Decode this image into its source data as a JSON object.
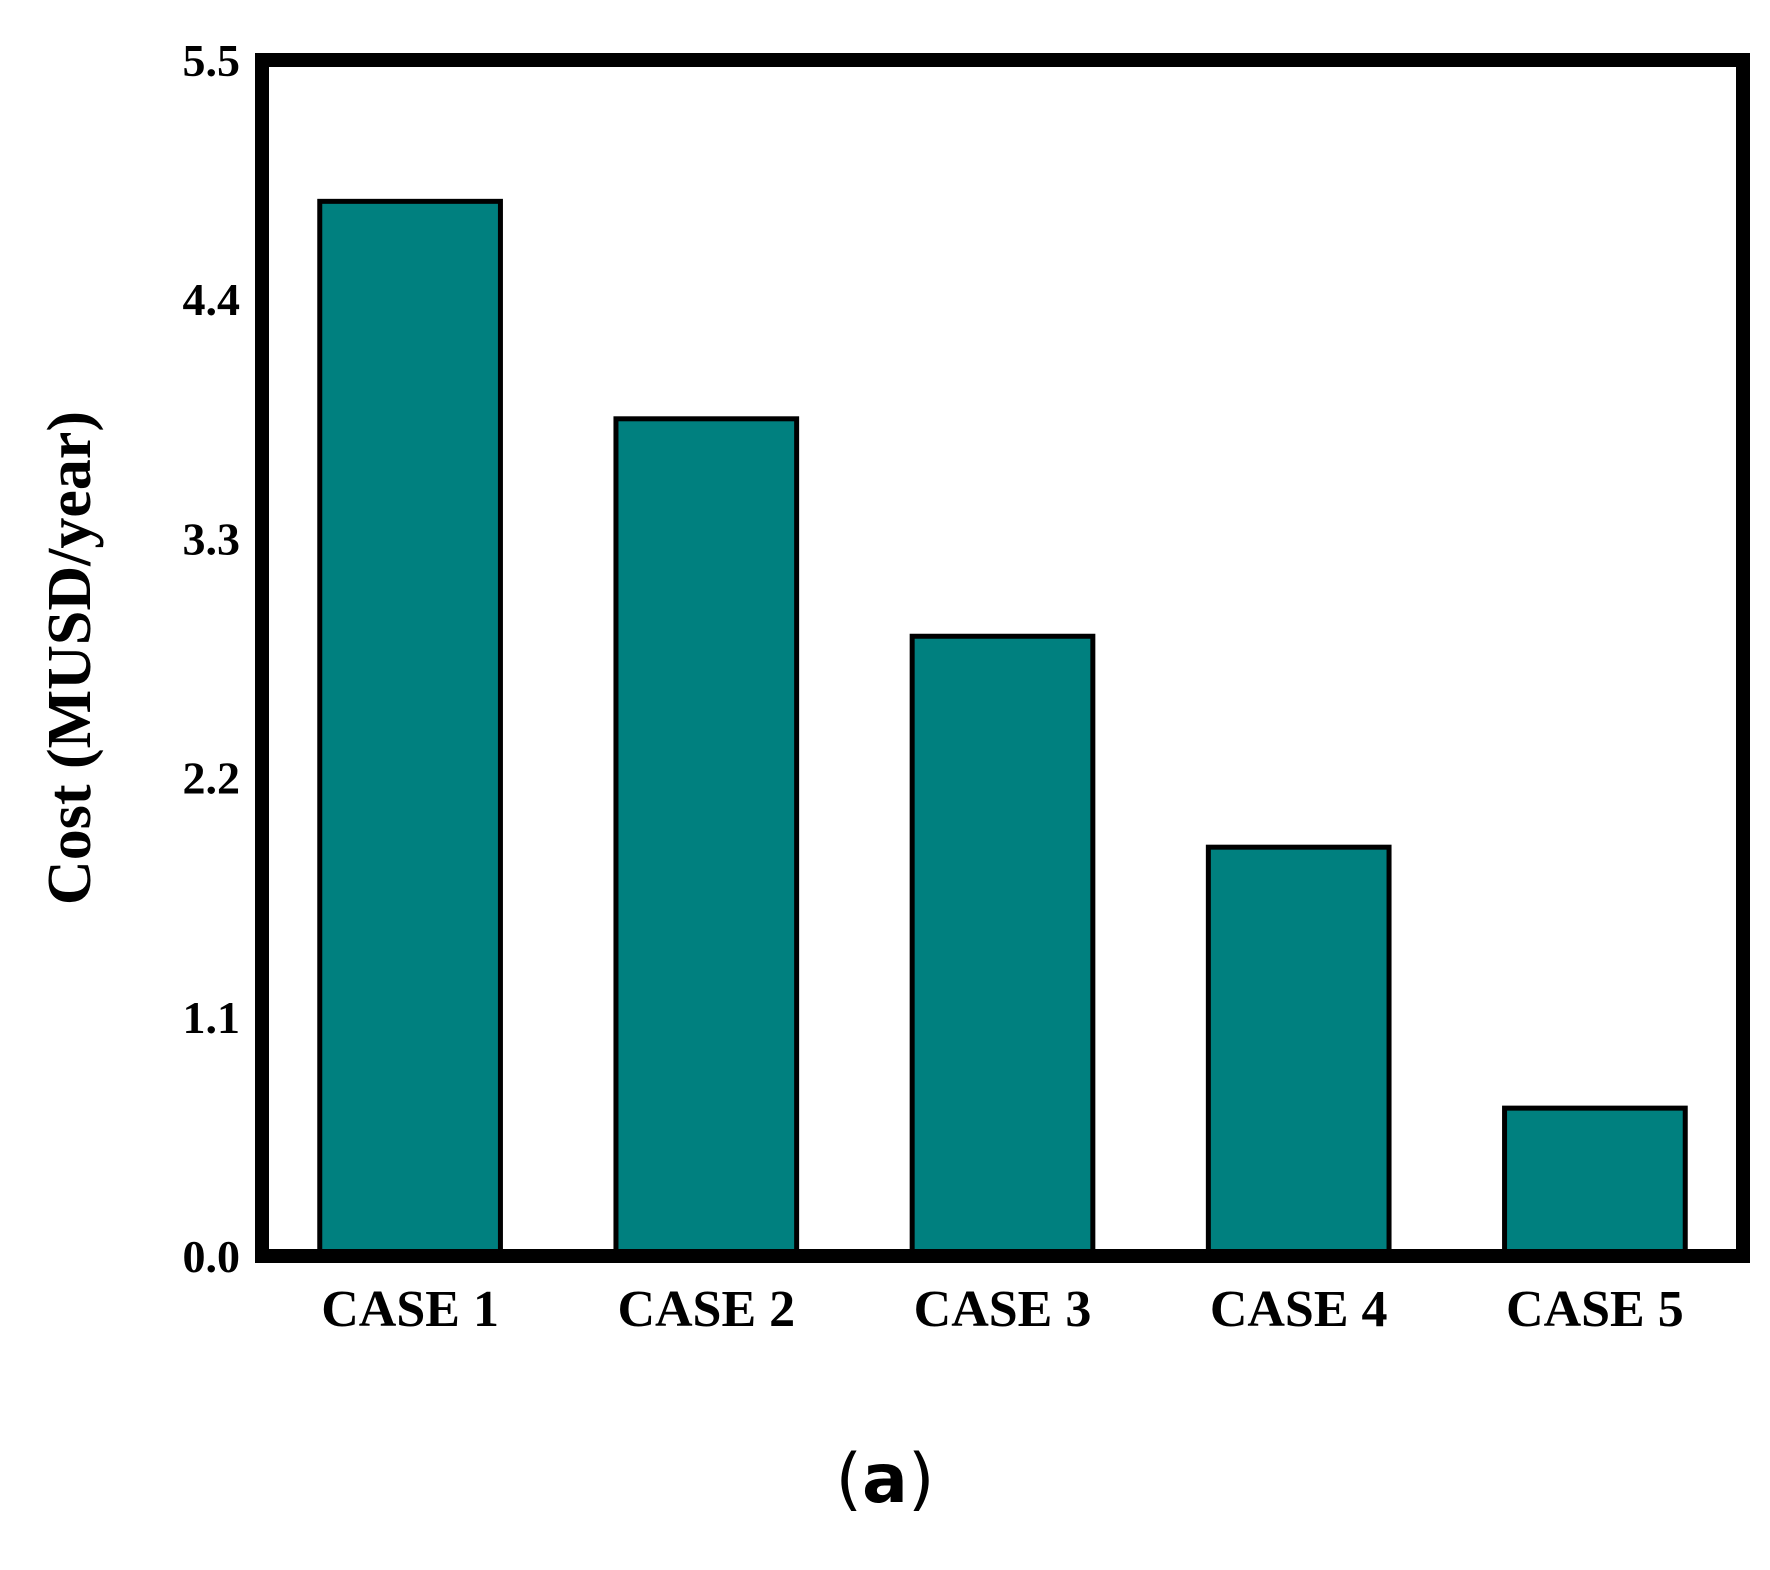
{
  "chart_data": {
    "type": "bar",
    "categories": [
      "CASE 1",
      "CASE 2",
      "CASE 3",
      "CASE 4",
      "CASE 5"
    ],
    "values": [
      4.85,
      3.85,
      2.85,
      1.88,
      0.68
    ],
    "ylabel": "Cost (MUSD/year)",
    "xlabel": "",
    "ylim": [
      0,
      5.5
    ],
    "yticks": [
      "0.0",
      "1.1",
      "2.2",
      "3.3",
      "4.4",
      "5.5"
    ],
    "ytick_values": [
      0,
      1.1,
      2.2,
      3.3,
      4.4,
      5.5
    ],
    "bar_color": "#00807f",
    "bar_edge_color": "#000000",
    "grid": false,
    "legend": "none"
  },
  "panel_label": {
    "open": "(",
    "letter": "a",
    "close": ")"
  }
}
